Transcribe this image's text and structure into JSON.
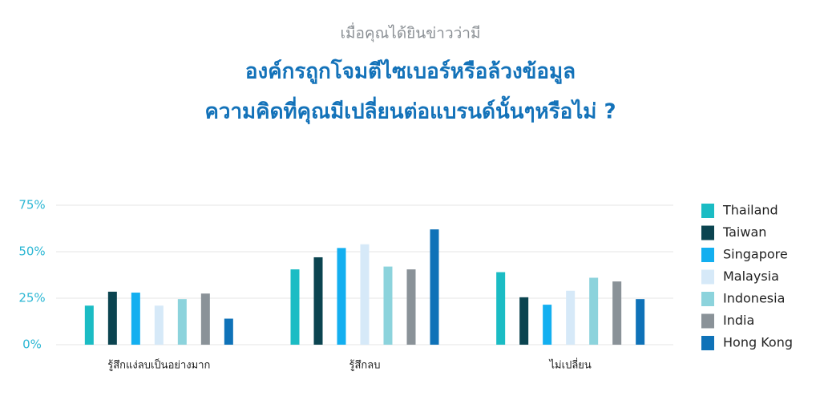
{
  "chart_data": {
    "type": "bar",
    "subtitle": "เมื่อคุณได้ยินข่าวว่ามี",
    "title_lines": [
      "องค์กรถูกโจมตีไซเบอร์หรือล้วงข้อมูล",
      "ความคิดที่คุณมีเปลี่ยนต่อแบรนด์นั้นๆหรือไม่ ?"
    ],
    "categories": [
      "รู้สึกแง่ลบเป็นอย่างมาก",
      "รู้สึกลบ",
      "ไม่เปลี่ยน"
    ],
    "series": [
      {
        "name": "Thailand",
        "color": "#1bbcc4",
        "values": [
          21,
          40.5,
          39
        ]
      },
      {
        "name": "Taiwan",
        "color": "#0b4450",
        "values": [
          28.5,
          47,
          25.5
        ]
      },
      {
        "name": "Singapore",
        "color": "#13aff0",
        "values": [
          28,
          52,
          21.5
        ]
      },
      {
        "name": "Malaysia",
        "color": "#d6e9f8",
        "values": [
          21,
          54,
          29
        ]
      },
      {
        "name": "Indonesia",
        "color": "#8cd3dc",
        "values": [
          24.5,
          42,
          36
        ]
      },
      {
        "name": "India",
        "color": "#8a9298",
        "values": [
          27.5,
          40.5,
          34
        ]
      },
      {
        "name": "Hong Kong",
        "color": "#0f72b8",
        "values": [
          14,
          62,
          24.5
        ]
      }
    ],
    "ylim": [
      0,
      75
    ],
    "yticks": [
      {
        "value": 0,
        "label": "0%"
      },
      {
        "value": 25,
        "label": "25%"
      },
      {
        "value": 50,
        "label": "50%"
      },
      {
        "value": 75,
        "label": "75%"
      }
    ],
    "grid": true,
    "legend": "right"
  }
}
